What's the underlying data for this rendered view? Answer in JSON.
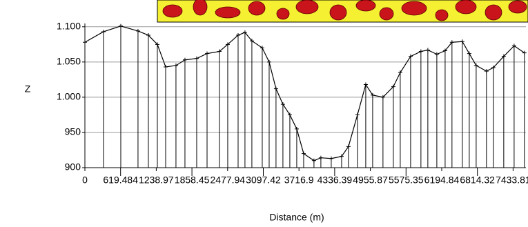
{
  "chart_data": {
    "type": "line",
    "y_label": "Z",
    "x_label": "Distance (m)",
    "color": "#000000",
    "grid": true,
    "xlim": [
      0,
      7657
    ],
    "ylim": [
      900,
      1138
    ],
    "xticks": [
      0,
      619.484,
      1238.97,
      1858.45,
      2477.94,
      3097.42,
      3716.9,
      4336.39,
      4955.87,
      5575.35,
      6194.84,
      6814.32,
      7433.81
    ],
    "yticks": [
      900,
      950,
      {
        "value": 1000,
        "label": "1.000"
      },
      {
        "value": 1050,
        "label": "1.050"
      },
      {
        "value": 1100,
        "label": "1.100"
      }
    ],
    "x": [
      0,
      323,
      623,
      922,
      1102,
      1258,
      1402,
      1581,
      1737,
      1941,
      2121,
      2336,
      2480,
      2660,
      2779,
      2899,
      3079,
      3199,
      3318,
      3438,
      3558,
      3678,
      3798,
      3977,
      4097,
      4277,
      4457,
      4576,
      4732,
      4876,
      4996,
      5175,
      5355,
      5475,
      5655,
      5834,
      5954,
      6110,
      6254,
      6373,
      6553,
      6673,
      6793,
      6972,
      7092,
      7272,
      7452,
      7631
    ],
    "values": [
      1078,
      1093,
      1101,
      1094,
      1088,
      1075,
      1043,
      1045,
      1053,
      1055,
      1062,
      1065,
      1075,
      1088,
      1092,
      1080,
      1070,
      1050,
      1012,
      990,
      975,
      955,
      920,
      910,
      914,
      913,
      916,
      930,
      975,
      1018,
      1003,
      1000,
      1015,
      1035,
      1058,
      1065,
      1067,
      1061,
      1066,
      1078,
      1079,
      1062,
      1045,
      1037,
      1042,
      1058,
      1073,
      1063
    ]
  }
}
